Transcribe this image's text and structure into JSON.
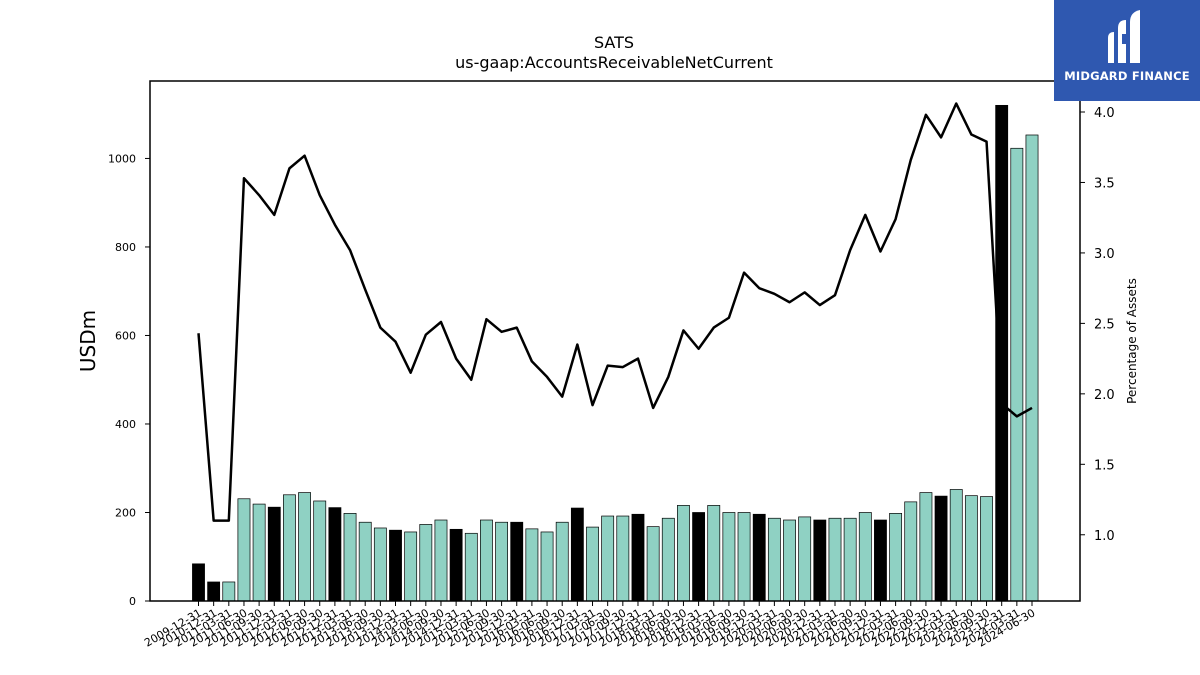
{
  "chart_data": {
    "type": "bar",
    "title": "SATS",
    "subtitle": "us-gaap:AccountsReceivableNetCurrent",
    "ylabel": "USDm",
    "y2label": "Percentage of Assets",
    "ylim": [
      0,
      1175
    ],
    "y2lim": [
      0.53,
      4.22
    ],
    "yticks": [
      0,
      200,
      400,
      600,
      800,
      1000
    ],
    "y2ticks": [
      1.0,
      1.5,
      2.0,
      2.5,
      3.0,
      3.5,
      4.0
    ],
    "y2tick_labels": [
      "1.0",
      "1.5",
      "2.0",
      "2.5",
      "3.0",
      "3.5",
      "4.0"
    ],
    "categories": [
      "2009-12-31",
      "2010-12-31",
      "2011-03-31",
      "2011-06-30",
      "2011-09-30",
      "2011-12-31",
      "2012-03-31",
      "2012-06-30",
      "2012-09-30",
      "2012-12-31",
      "2013-03-31",
      "2013-06-30",
      "2013-09-30",
      "2013-12-31",
      "2014-03-31",
      "2014-06-30",
      "2014-09-30",
      "2014-12-31",
      "2015-03-31",
      "2015-06-30",
      "2015-09-30",
      "2015-12-31",
      "2016-03-31",
      "2016-06-30",
      "2016-09-30",
      "2016-12-31",
      "2017-03-31",
      "2017-06-30",
      "2017-09-30",
      "2017-12-31",
      "2018-03-31",
      "2018-06-30",
      "2018-09-30",
      "2018-12-31",
      "2019-03-31",
      "2019-06-30",
      "2019-09-30",
      "2019-12-31",
      "2020-03-31",
      "2020-06-30",
      "2020-09-30",
      "2020-12-31",
      "2021-03-31",
      "2021-06-30",
      "2021-09-30",
      "2021-12-31",
      "2022-03-31",
      "2022-06-30",
      "2022-09-30",
      "2022-12-31",
      "2023-03-31",
      "2023-06-30",
      "2023-09-30",
      "2023-12-31",
      "2024-03-31",
      "2024-06-30"
    ],
    "shown_xtick_labels": [
      "2009-12-31",
      "2010-12-31",
      "2011-03-31",
      "2011-06-30",
      "2011-09-30",
      "2011-12-31",
      "2012-03-31",
      "2012-06-30",
      "2012-09-30",
      "2012-12-31",
      "2013-03-31",
      "2013-06-30",
      "2013-09-30",
      "2013-12-31",
      "2014-03-31",
      "2014-06-30",
      "2014-09-30",
      "2014-12-31",
      "2015-03-31",
      "2015-06-30",
      "2015-09-30",
      "2015-12-31",
      "2016-03-31",
      "2016-06-30",
      "2016-09-30",
      "2016-12-31",
      "2017-03-31",
      "2017-06-30",
      "2017-09-30",
      "2017-12-31",
      "2018-03-31",
      "2018-06-30",
      "2018-09-30",
      "2018-12-31",
      "2019-03-31",
      "2019-06-30",
      "2019-09-30",
      "2019-12-31",
      "2020-03-31",
      "2020-06-30",
      "2020-09-30",
      "2020-12-31",
      "2021-03-31",
      "2021-06-30",
      "2021-09-30",
      "2021-12-31",
      "2022-03-31",
      "2022-06-30",
      "2022-09-30",
      "2022-12-31",
      "2023-03-31",
      "2023-06-30",
      "2023-09-30",
      "2023-12-31",
      "2024-03-31",
      "2024-06-30"
    ],
    "series": [
      {
        "kind": "bar",
        "values": [
          84,
          43,
          43,
          231,
          219,
          212,
          240,
          245,
          226,
          211,
          198,
          178,
          165,
          160,
          156,
          173,
          183,
          162,
          153,
          183,
          178,
          178,
          163,
          156,
          178,
          210,
          167,
          192,
          192,
          196,
          168,
          187,
          216,
          200,
          216,
          200,
          200,
          196,
          187,
          183,
          190,
          183,
          187,
          187,
          200,
          183,
          198,
          224,
          245,
          237,
          252,
          238,
          236,
          1120,
          1023,
          1053
        ],
        "q4_flags": [
          1,
          1,
          0,
          0,
          0,
          1,
          0,
          0,
          0,
          1,
          0,
          0,
          0,
          1,
          0,
          0,
          0,
          1,
          0,
          0,
          0,
          1,
          0,
          0,
          0,
          1,
          0,
          0,
          0,
          1,
          0,
          0,
          0,
          1,
          0,
          0,
          0,
          1,
          0,
          0,
          0,
          1,
          0,
          0,
          0,
          1,
          0,
          0,
          0,
          1,
          0,
          0,
          0,
          1,
          0,
          0
        ]
      },
      {
        "kind": "line",
        "axis": "right",
        "values": [
          2.43,
          1.1,
          1.1,
          3.53,
          3.41,
          3.27,
          3.6,
          3.69,
          3.41,
          3.2,
          3.02,
          2.74,
          2.47,
          2.37,
          2.15,
          2.42,
          2.51,
          2.25,
          2.1,
          2.53,
          2.44,
          2.47,
          2.23,
          2.12,
          1.98,
          2.35,
          1.92,
          2.2,
          2.19,
          2.25,
          1.9,
          2.12,
          2.45,
          2.32,
          2.47,
          2.54,
          2.86,
          2.75,
          2.71,
          2.65,
          2.72,
          2.63,
          2.7,
          3.02,
          3.27,
          3.01,
          3.24,
          3.66,
          3.98,
          3.82,
          4.06,
          3.84,
          3.79,
          1.93,
          1.84,
          1.9
        ]
      }
    ],
    "colors": {
      "bar": "#8fd1c3",
      "bar_q4": "#000000",
      "line": "#000000",
      "axis": "#000000"
    },
    "grid": false
  },
  "logo": {
    "text": "MIDGARD FINANCE",
    "bg": "#2f58b0"
  }
}
